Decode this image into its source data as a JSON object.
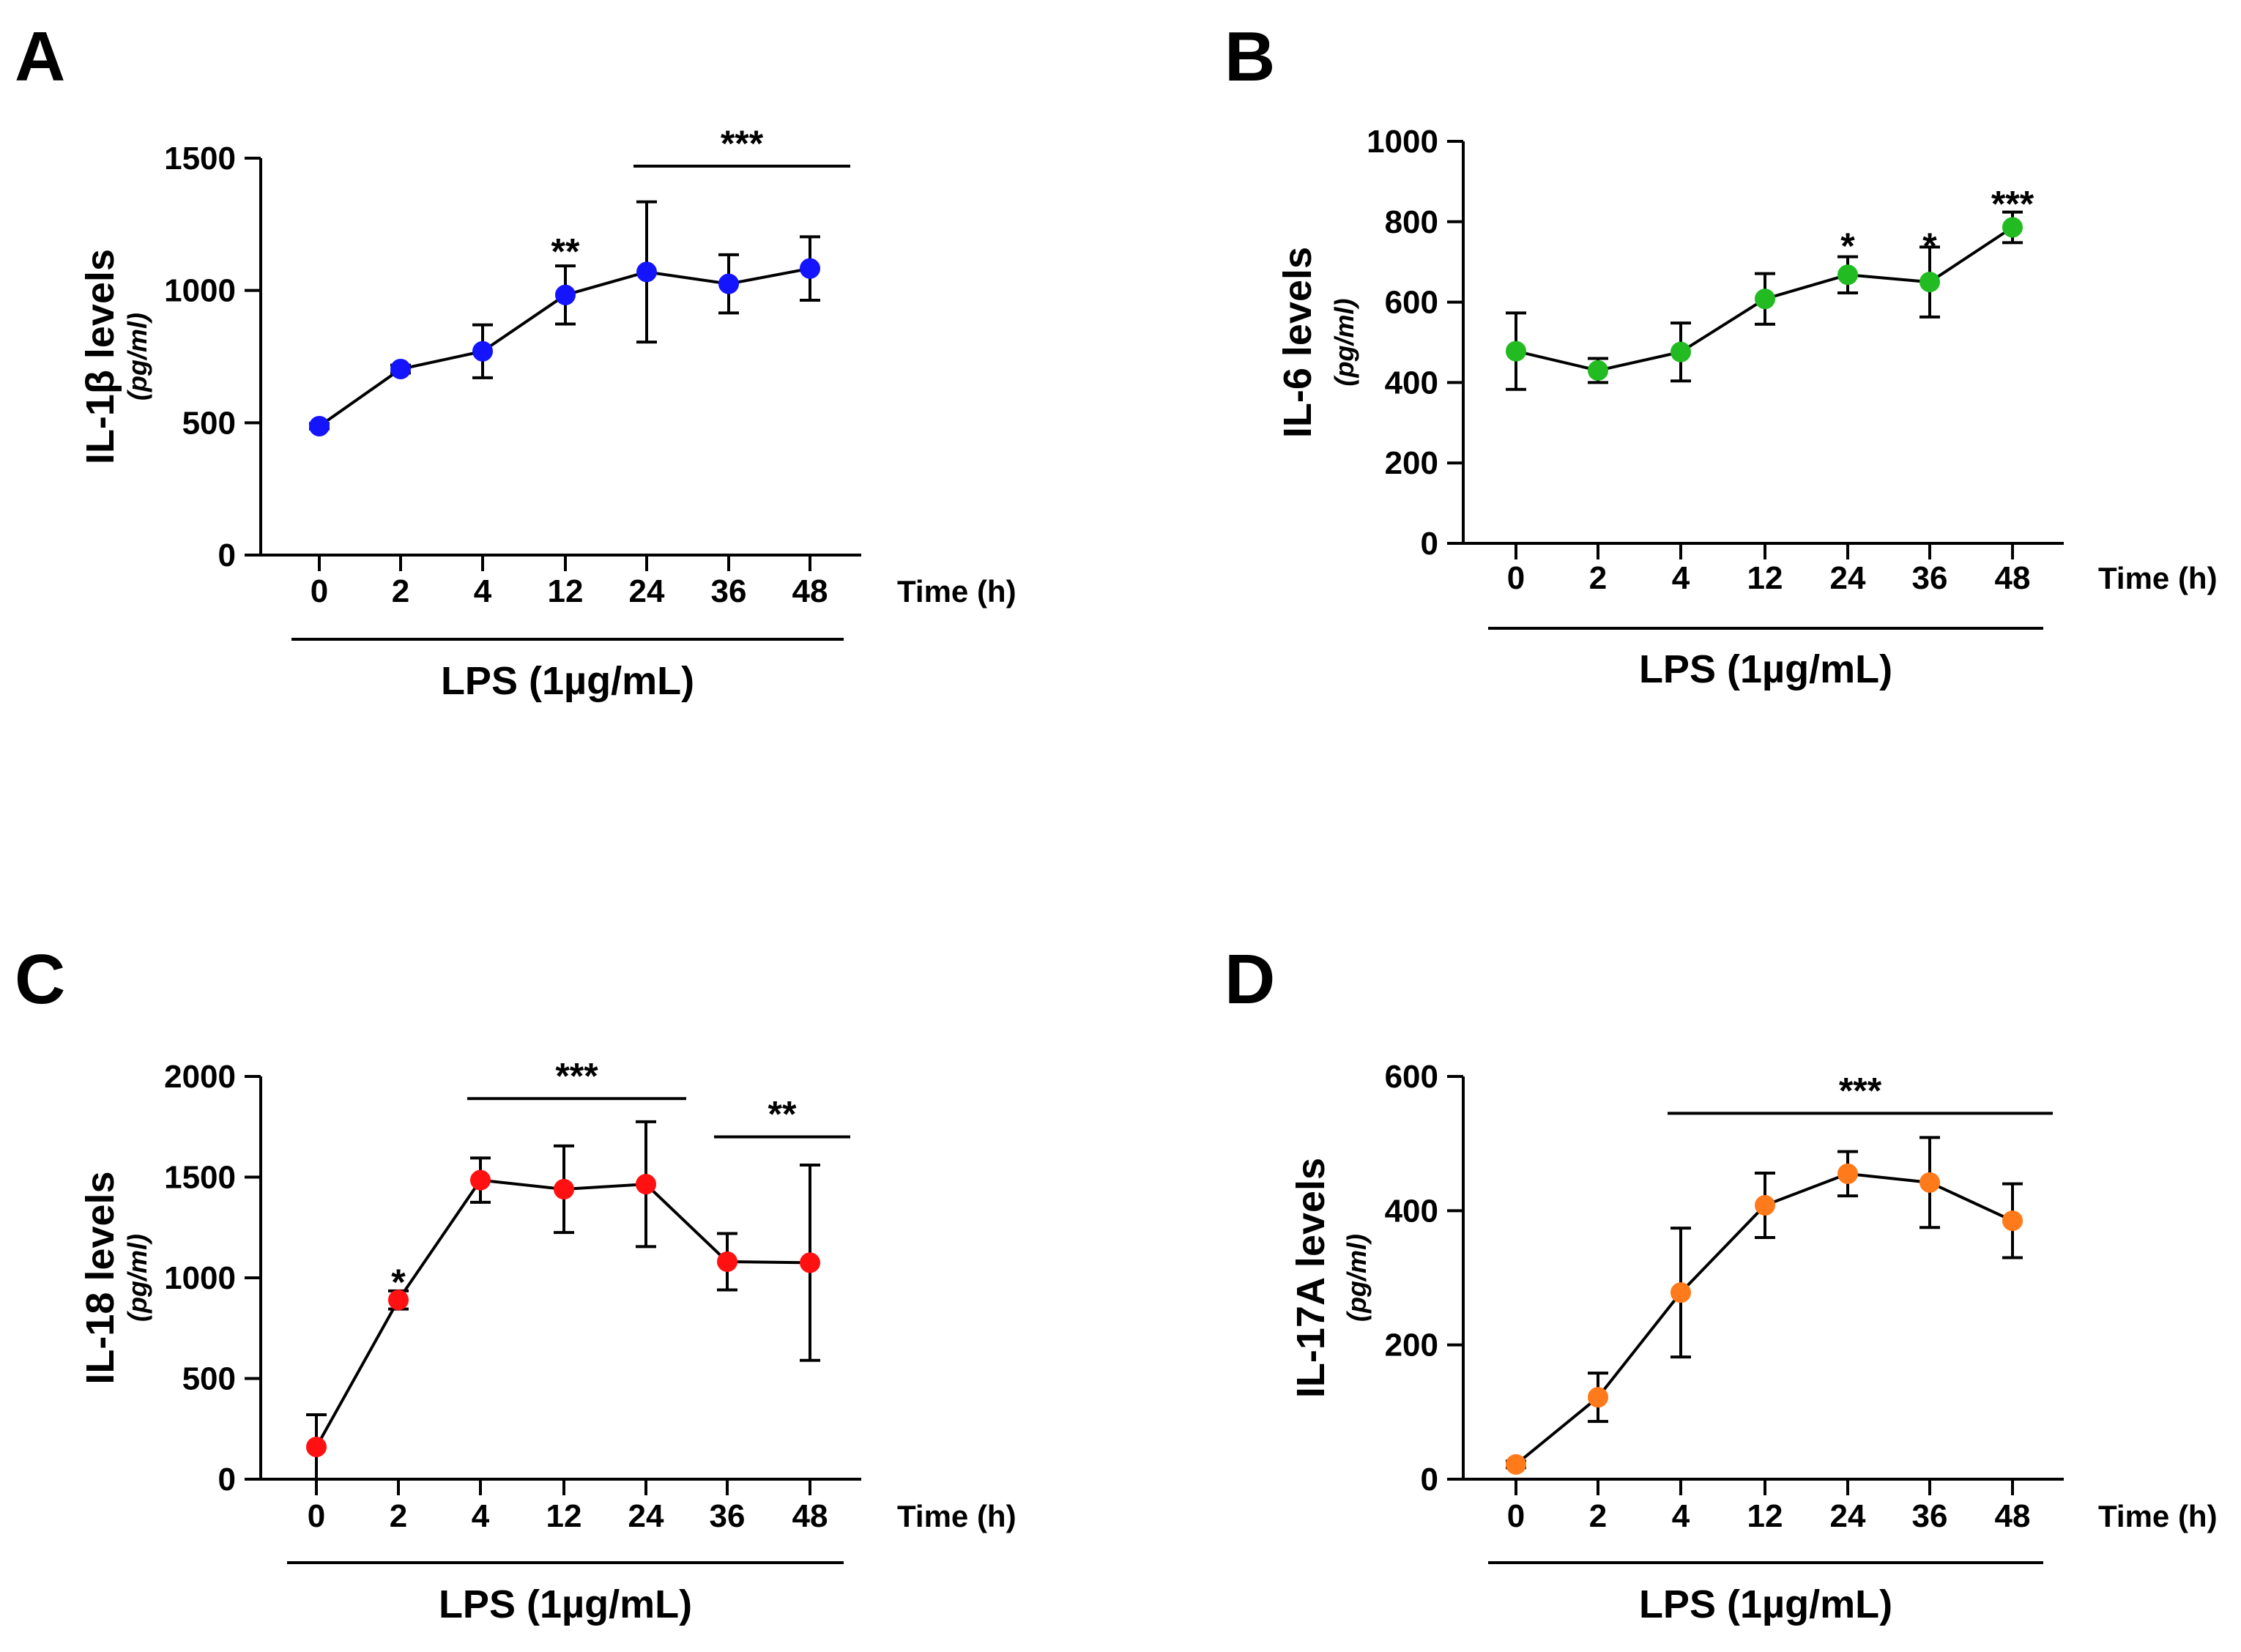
{
  "figure": {
    "panels": [
      "A",
      "B",
      "C",
      "D"
    ],
    "x_axis_label": "Time (h)",
    "treatment_label": "LPS (1µg/mL)",
    "y_unit": "(pg/ml)"
  },
  "chart_data": [
    {
      "panel": "A",
      "type": "line",
      "ylabel": "IL-1β levels",
      "yunit": "(pg/ml)",
      "xlabel": "Time (h)",
      "categories": [
        "0",
        "2",
        "4",
        "12",
        "24",
        "36",
        "48"
      ],
      "ylim": [
        0,
        1500
      ],
      "yticks": [
        0,
        500,
        1000,
        1500
      ],
      "color": "#1414ff",
      "series": [
        {
          "name": "IL-1β",
          "values": [
            487,
            703,
            770,
            983,
            1070,
            1025,
            1083
          ],
          "errors": [
            10,
            15,
            100,
            110,
            265,
            110,
            120
          ]
        }
      ],
      "significance": [
        {
          "label": "**",
          "from": 3,
          "to": 3,
          "line": false,
          "y": 1155
        },
        {
          "label": "***",
          "from": 4,
          "to": 6,
          "line": true,
          "y": 1470
        }
      ]
    },
    {
      "panel": "B",
      "type": "line",
      "ylabel": "IL-6 levels",
      "yunit": "(pg/ml)",
      "xlabel": "Time (h)",
      "categories": [
        "0",
        "2",
        "4",
        "12",
        "24",
        "36",
        "48"
      ],
      "ylim": [
        0,
        1000
      ],
      "yticks": [
        0,
        200,
        400,
        600,
        800,
        1000
      ],
      "color": "#22bb22",
      "series": [
        {
          "name": "IL-6",
          "values": [
            478,
            430,
            476,
            608,
            668,
            650,
            786
          ],
          "errors": [
            95,
            30,
            72,
            63,
            45,
            87,
            38
          ]
        }
      ],
      "significance": [
        {
          "label": "*",
          "from": 4,
          "to": 4,
          "line": false,
          "y": 745
        },
        {
          "label": "*",
          "from": 5,
          "to": 5,
          "line": false,
          "y": 745
        },
        {
          "label": "***",
          "from": 6,
          "to": 6,
          "line": false,
          "y": 850
        }
      ]
    },
    {
      "panel": "C",
      "type": "line",
      "ylabel": "IL-18 levels",
      "yunit": "(pg/ml)",
      "xlabel": "Time (h)",
      "categories": [
        "0",
        "2",
        "4",
        "12",
        "24",
        "36",
        "48"
      ],
      "ylim": [
        0,
        2000
      ],
      "yticks": [
        0,
        500,
        1000,
        1500,
        2000
      ],
      "color": "#ff1111",
      "series": [
        {
          "name": "IL-18",
          "values": [
            160,
            890,
            1485,
            1440,
            1465,
            1080,
            1075
          ],
          "errors": [
            160,
            45,
            110,
            215,
            310,
            140,
            485
          ]
        }
      ],
      "significance": [
        {
          "label": "*",
          "from": 1,
          "to": 1,
          "line": false,
          "y": 990
        },
        {
          "label": "***",
          "from": 2,
          "to": 4,
          "line": true,
          "y": 1890
        },
        {
          "label": "**",
          "from": 5,
          "to": 6,
          "line": true,
          "y": 1700
        }
      ]
    },
    {
      "panel": "D",
      "type": "line",
      "ylabel": "IL-17A levels",
      "yunit": "(pg/ml)",
      "xlabel": "Time (h)",
      "categories": [
        "0",
        "2",
        "4",
        "12",
        "24",
        "36",
        "48"
      ],
      "ylim": [
        0,
        600
      ],
      "yticks": [
        0,
        200,
        400,
        600
      ],
      "color": "#ff7a1a",
      "series": [
        {
          "name": "IL-17A",
          "values": [
            22,
            122,
            278,
            408,
            455,
            442,
            385
          ],
          "errors": [
            5,
            36,
            96,
            48,
            33,
            67,
            55
          ]
        }
      ],
      "significance": [
        {
          "label": "***",
          "from": 2,
          "to": 6,
          "line": true,
          "y": 545
        }
      ]
    }
  ]
}
